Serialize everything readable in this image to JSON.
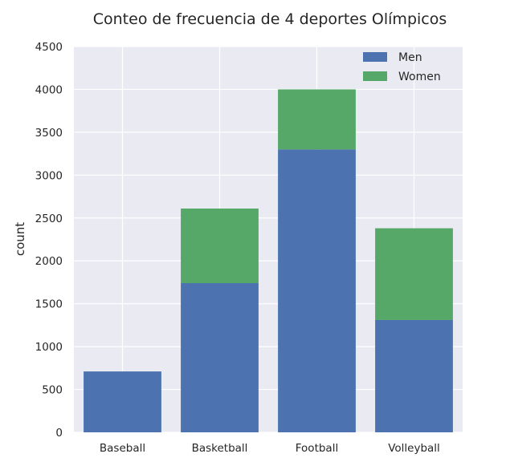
{
  "chart_data": {
    "type": "bar",
    "stacked": true,
    "title": "Conteo de frecuencia de 4 deportes Olímpicos",
    "xlabel": "",
    "ylabel": "count",
    "categories": [
      "Baseball",
      "Basketball",
      "Football",
      "Volleyball"
    ],
    "series": [
      {
        "name": "Men",
        "color": "#4c72b0",
        "values": [
          710,
          1740,
          3300,
          1310
        ]
      },
      {
        "name": "Women",
        "color": "#55a868",
        "values": [
          0,
          870,
          700,
          1070
        ]
      }
    ],
    "ylim": [
      0,
      4500
    ],
    "yticks": [
      "0",
      "500",
      "1000",
      "1500",
      "2000",
      "2500",
      "3000",
      "3500",
      "4000",
      "4500"
    ],
    "grid": true,
    "legend_position": "top-right",
    "background_color": "#eaeaf2"
  }
}
